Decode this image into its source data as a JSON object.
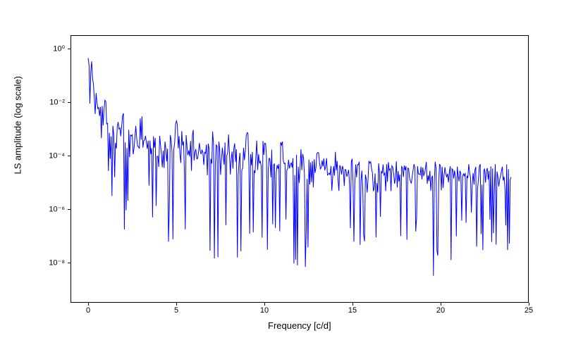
{
  "chart": {
    "type": "line",
    "xlabel": "Frequency [c/d]",
    "ylabel": "LS amplitude (log scale)",
    "xlim": [
      -1,
      25
    ],
    "ylim_log": [
      -9.5,
      0.5
    ],
    "xticks": [
      0,
      5,
      10,
      15,
      20,
      25
    ],
    "yticks_exp": [
      -8,
      -6,
      -4,
      -2,
      0
    ],
    "ytick_labels": [
      "10⁻⁸",
      "10⁻⁶",
      "10⁻⁴",
      "10⁻²",
      "10⁰"
    ],
    "line_color": "#0000ff",
    "line_width": 1,
    "background_color": "#ffffff",
    "border_color": "#000000",
    "label_fontsize": 13,
    "tick_fontsize": 11,
    "x_range": [
      0,
      24
    ],
    "envelope_peaks": [
      [
        0.2,
        -0.1
      ],
      [
        0.4,
        -0.8
      ],
      [
        0.6,
        -1.5
      ],
      [
        1,
        -2.0
      ],
      [
        2,
        -2.5
      ],
      [
        3,
        -2.6
      ],
      [
        4,
        -2.7
      ],
      [
        5,
        -2.8
      ],
      [
        6,
        -2.9
      ],
      [
        7,
        -3.0
      ],
      [
        8,
        -3.1
      ],
      [
        9,
        -3.2
      ],
      [
        10,
        -3.4
      ],
      [
        11,
        -3.6
      ],
      [
        12,
        -3.8
      ],
      [
        13,
        -3.9
      ],
      [
        14,
        -4.0
      ],
      [
        15,
        -4.2
      ],
      [
        16,
        -4.3
      ],
      [
        17,
        -4.3
      ],
      [
        18,
        -4.4
      ],
      [
        19,
        -4.4
      ],
      [
        20,
        -4.4
      ],
      [
        21,
        -4.4
      ],
      [
        22,
        -4.4
      ],
      [
        23,
        -4.5
      ],
      [
        24,
        -4.5
      ]
    ],
    "envelope_mid": [
      [
        0.2,
        -1.5
      ],
      [
        1,
        -3.0
      ],
      [
        2,
        -3.5
      ],
      [
        3,
        -3.8
      ],
      [
        5,
        -4.0
      ],
      [
        7,
        -4.2
      ],
      [
        10,
        -4.5
      ],
      [
        13,
        -4.7
      ],
      [
        16,
        -4.8
      ],
      [
        20,
        -4.8
      ],
      [
        24,
        -4.8
      ]
    ],
    "envelope_troughs": [
      [
        0.2,
        -2.5
      ],
      [
        1,
        -4.5
      ],
      [
        2,
        -6.9
      ],
      [
        3,
        -5.5
      ],
      [
        4,
        -6.8
      ],
      [
        5,
        -7.0
      ],
      [
        6,
        -6.2
      ],
      [
        7,
        -8.0
      ],
      [
        8,
        -7.2
      ],
      [
        9,
        -7.8
      ],
      [
        10,
        -7.5
      ],
      [
        11,
        -7.0
      ],
      [
        12,
        -8.0
      ],
      [
        13,
        -7.5
      ],
      [
        14,
        -7.8
      ],
      [
        15,
        -7.2
      ],
      [
        16,
        -7.0
      ],
      [
        17,
        -7.5
      ],
      [
        18,
        -7.6
      ],
      [
        19,
        -7.2
      ],
      [
        20,
        -8.9
      ],
      [
        21,
        -7.5
      ],
      [
        22,
        -7.0
      ],
      [
        23,
        -7.3
      ],
      [
        24,
        -7.2
      ]
    ],
    "n_spikes": 480
  }
}
